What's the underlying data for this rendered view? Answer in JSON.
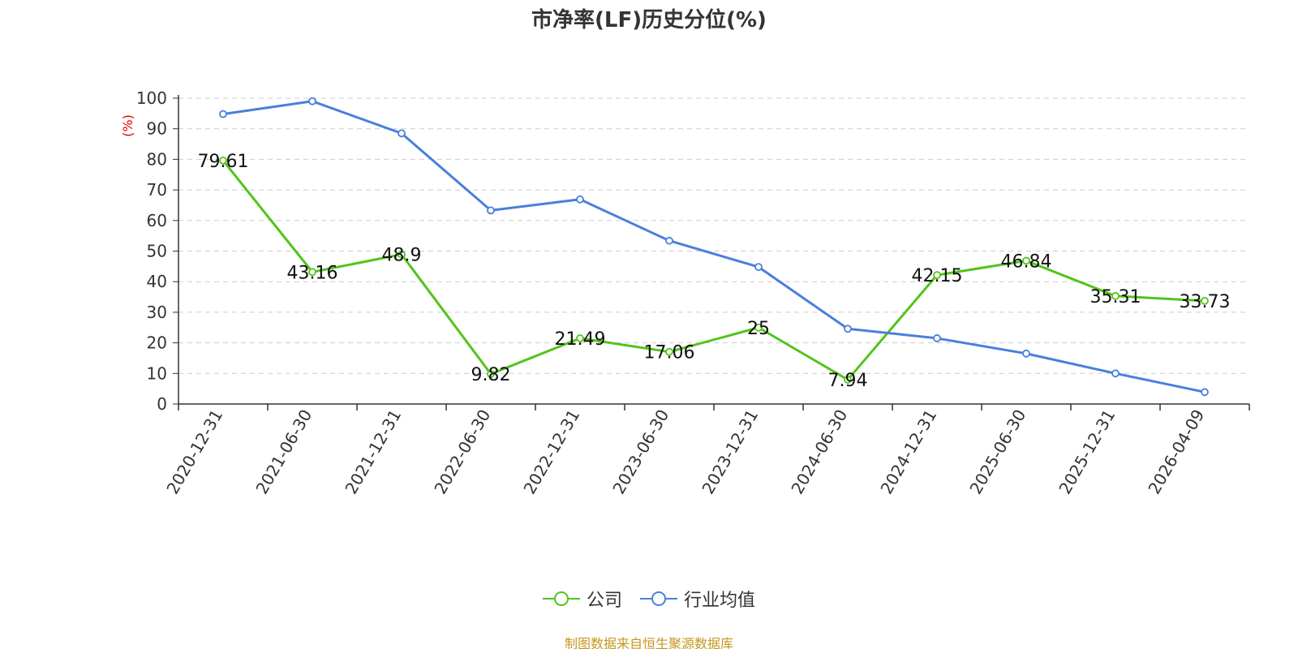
{
  "chart_data": {
    "type": "line",
    "title": "市净率(LF)历史分位(%)",
    "ylabel": "(%)",
    "ylim": [
      0,
      100
    ],
    "yticks": [
      0,
      10,
      20,
      30,
      40,
      50,
      60,
      70,
      80,
      90,
      100
    ],
    "categories": [
      "2020-12-31",
      "2021-06-30",
      "2021-12-31",
      "2022-06-30",
      "2022-12-31",
      "2023-06-30",
      "2023-12-31",
      "2024-06-30",
      "2024-12-31",
      "2025-06-30",
      "2025-12-31",
      "2026-04-09"
    ],
    "series": [
      {
        "name": "公司",
        "color": "#52c41a",
        "values": [
          79.61,
          43.16,
          48.9,
          9.82,
          21.49,
          17.06,
          25,
          7.94,
          42.15,
          46.84,
          35.31,
          33.73
        ],
        "labels": [
          "79.61",
          "43.16",
          "48.9",
          "9.82",
          "21.49",
          "17.06",
          "25",
          "7.94",
          "42.15",
          "46.84",
          "35.31",
          "33.73"
        ]
      },
      {
        "name": "行业均值",
        "color": "#4a7fdc",
        "values": [
          94.8,
          99.0,
          88.5,
          63.3,
          66.9,
          53.4,
          44.8,
          24.6,
          21.5,
          16.5,
          10.0,
          3.9
        ]
      }
    ],
    "grid": true,
    "legend_position": "bottom"
  },
  "source": "制图数据来自恒生聚源数据库"
}
